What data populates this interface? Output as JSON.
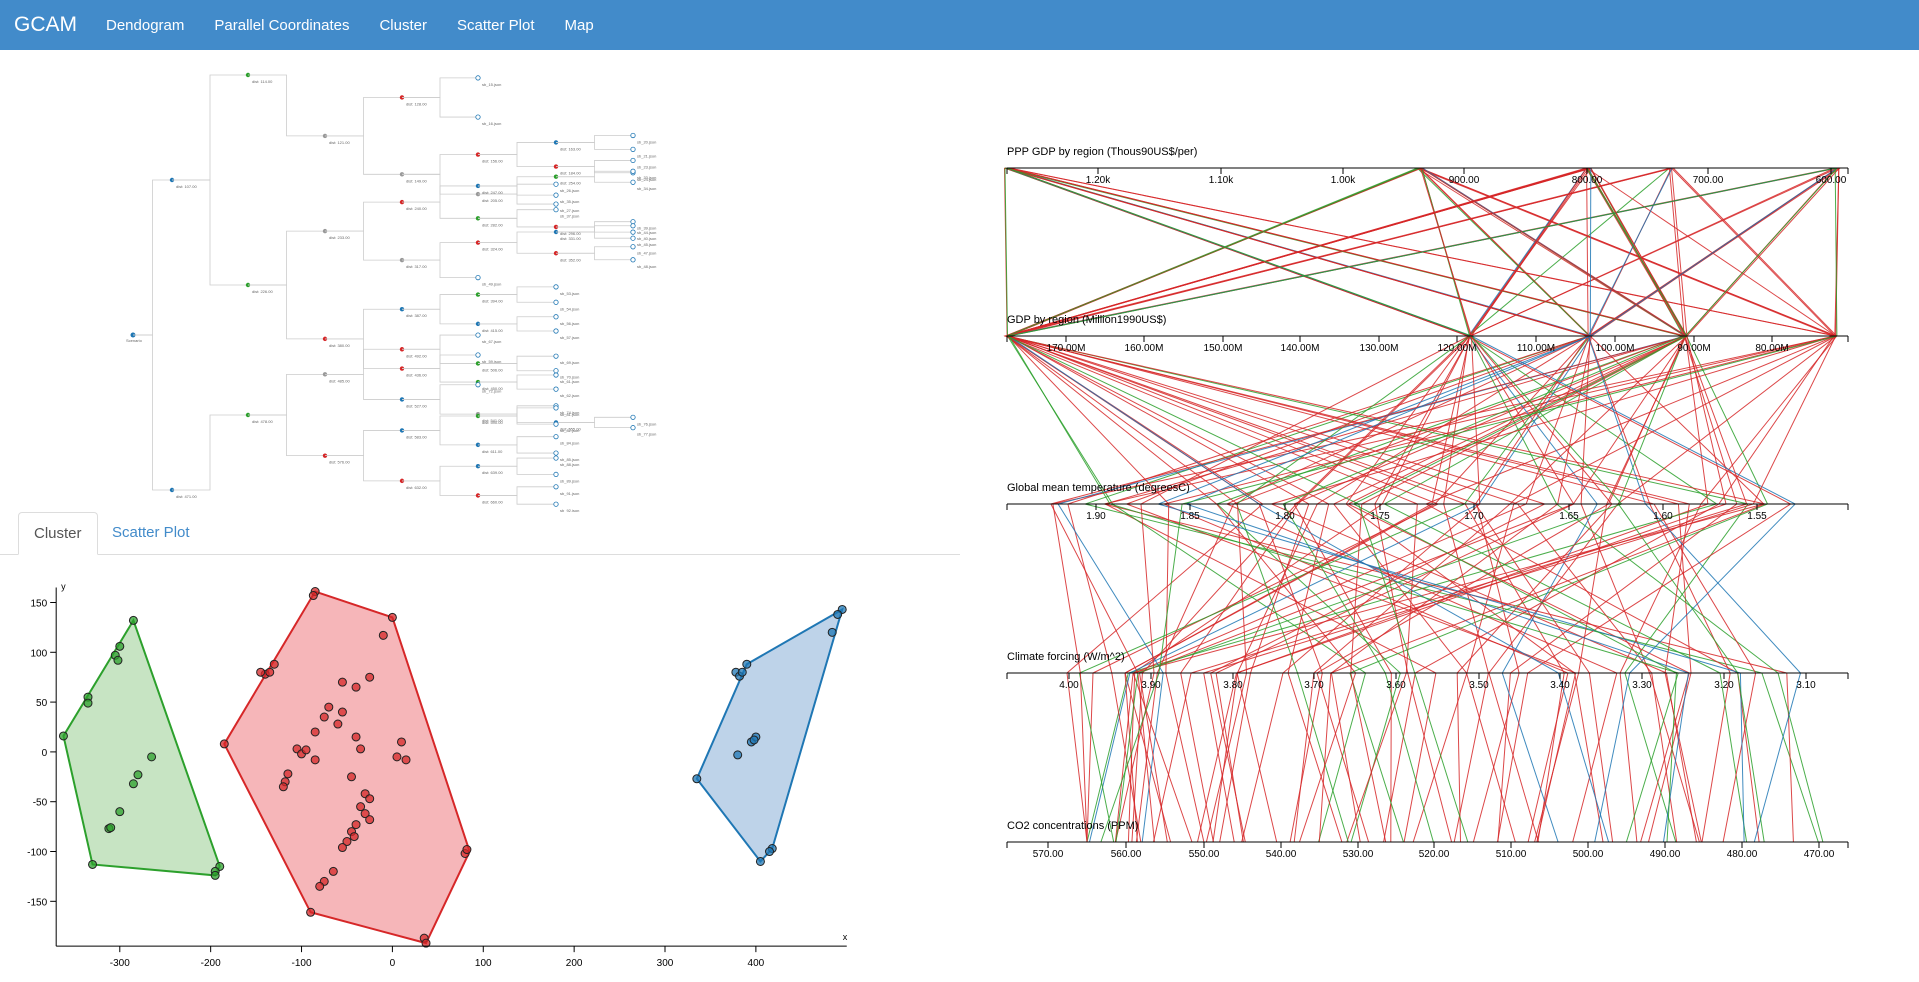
{
  "navbar": {
    "brand": "GCAM",
    "links": [
      "Dendogram",
      "Parallel Coordinates",
      "Cluster",
      "Scatter Plot",
      "Map"
    ]
  },
  "tabs": {
    "active": "Cluster",
    "inactive": "Scatter Plot"
  },
  "dendrogram": {
    "root_label": "Scenario",
    "internal_prefix": "dist:",
    "leaf_suffix": ".json"
  },
  "colors": {
    "navbar": "#428bca",
    "red": "#d62728",
    "green": "#2ca02c",
    "blue": "#1f77b4",
    "red_fill": "#f4a4a8",
    "green_fill": "#b9ddb4",
    "blue_fill": "#aec8e4"
  },
  "chart_data": [
    {
      "type": "scatter",
      "xlabel": "x",
      "ylabel": "y",
      "xlim": [
        -370,
        500
      ],
      "ylim": [
        -195,
        165
      ],
      "xticks": [
        "-300",
        "-200",
        "-100",
        "0",
        "100",
        "200",
        "300",
        "400"
      ],
      "yticks": [
        "150",
        "100",
        "50",
        "0",
        "-50",
        "-100",
        "-150"
      ],
      "series": [
        {
          "color": "green",
          "hull": [
            [
              -285,
              132
            ],
            [
              -362,
              16
            ],
            [
              -330,
              -113
            ],
            [
              -195,
              -124
            ],
            [
              -190,
              -115
            ]
          ],
          "points": [
            [
              -285,
              132
            ],
            [
              -300,
              106
            ],
            [
              -305,
              97
            ],
            [
              -302,
              92
            ],
            [
              -335,
              55
            ],
            [
              -335,
              49
            ],
            [
              -362,
              16
            ],
            [
              -265,
              -5
            ],
            [
              -280,
              -23
            ],
            [
              -285,
              -32
            ],
            [
              -300,
              -60
            ],
            [
              -312,
              -77
            ],
            [
              -310,
              -76
            ],
            [
              -330,
              -113
            ],
            [
              -190,
              -115
            ],
            [
              -195,
              -120
            ],
            [
              -195,
              -124
            ]
          ]
        },
        {
          "color": "red",
          "hull": [
            [
              -85,
              161
            ],
            [
              0,
              135
            ],
            [
              85,
              -100
            ],
            [
              37,
              -192
            ],
            [
              -90,
              -161
            ],
            [
              -185,
              8
            ]
          ],
          "points": [
            [
              -85,
              161
            ],
            [
              -87,
              157
            ],
            [
              -140,
              78
            ],
            [
              -145,
              80
            ],
            [
              -130,
              88
            ],
            [
              -135,
              80
            ],
            [
              -55,
              70
            ],
            [
              -40,
              65
            ],
            [
              -25,
              75
            ],
            [
              -10,
              117
            ],
            [
              0,
              135
            ],
            [
              -70,
              45
            ],
            [
              -75,
              35
            ],
            [
              -55,
              40
            ],
            [
              -60,
              28
            ],
            [
              -85,
              20
            ],
            [
              -105,
              3
            ],
            [
              -100,
              -2
            ],
            [
              -95,
              2
            ],
            [
              -85,
              -8
            ],
            [
              -115,
              -22
            ],
            [
              -118,
              -30
            ],
            [
              -120,
              -35
            ],
            [
              -40,
              15
            ],
            [
              -35,
              3
            ],
            [
              -45,
              -25
            ],
            [
              -30,
              -42
            ],
            [
              -25,
              -47
            ],
            [
              -35,
              -55
            ],
            [
              -30,
              -62
            ],
            [
              -25,
              -68
            ],
            [
              -40,
              -73
            ],
            [
              -45,
              -80
            ],
            [
              -42,
              -85
            ],
            [
              -50,
              -90
            ],
            [
              -55,
              -96
            ],
            [
              -65,
              -120
            ],
            [
              -75,
              -130
            ],
            [
              -80,
              -135
            ],
            [
              -90,
              -161
            ],
            [
              5,
              -5
            ],
            [
              10,
              10
            ],
            [
              15,
              -8
            ],
            [
              80,
              -102
            ],
            [
              82,
              -98
            ],
            [
              35,
              -187
            ],
            [
              37,
              -192
            ],
            [
              -185,
              8
            ]
          ]
        },
        {
          "color": "blue",
          "hull": [
            [
              495,
              143
            ],
            [
              390,
              88
            ],
            [
              335,
              -27
            ],
            [
              405,
              -110
            ],
            [
              418,
              -97
            ]
          ],
          "points": [
            [
              495,
              143
            ],
            [
              490,
              138
            ],
            [
              484,
              120
            ],
            [
              390,
              88
            ],
            [
              378,
              80
            ],
            [
              382,
              76
            ],
            [
              385,
              80
            ],
            [
              395,
              10
            ],
            [
              400,
              15
            ],
            [
              398,
              12
            ],
            [
              380,
              -3
            ],
            [
              335,
              -27
            ],
            [
              418,
              -97
            ],
            [
              415,
              -100
            ],
            [
              405,
              -110
            ]
          ]
        }
      ]
    },
    {
      "type": "parallel-coordinates",
      "axes": [
        {
          "label": "PPP GDP by region (Thous90US$/per)",
          "ticks": [
            "1.20k",
            "1.10k",
            "1.00k",
            "900.00",
            "800.00",
            "700.00",
            "600.00"
          ]
        },
        {
          "label": "GDP by region (Million1990US$)",
          "ticks": [
            "170.00M",
            "160.00M",
            "150.00M",
            "140.00M",
            "130.00M",
            "120.00M",
            "110.00M",
            "100.00M",
            "90.00M",
            "80.00M"
          ]
        },
        {
          "label": "Global mean temperature (degreesC)",
          "ticks": [
            "1.90",
            "1.85",
            "1.80",
            "1.75",
            "1.70",
            "1.65",
            "1.60",
            "1.55"
          ]
        },
        {
          "label": "Climate forcing (W/m^2)",
          "ticks": [
            "4.00",
            "3.90",
            "3.80",
            "3.70",
            "3.60",
            "3.50",
            "3.40",
            "3.30",
            "3.20",
            "3.10"
          ]
        },
        {
          "label": "CO2 concentrations (PPM)",
          "ticks": [
            "570.00",
            "560.00",
            "550.00",
            "540.00",
            "530.00",
            "520.00",
            "510.00",
            "500.00",
            "490.00",
            "480.00",
            "470.00"
          ]
        }
      ]
    }
  ]
}
